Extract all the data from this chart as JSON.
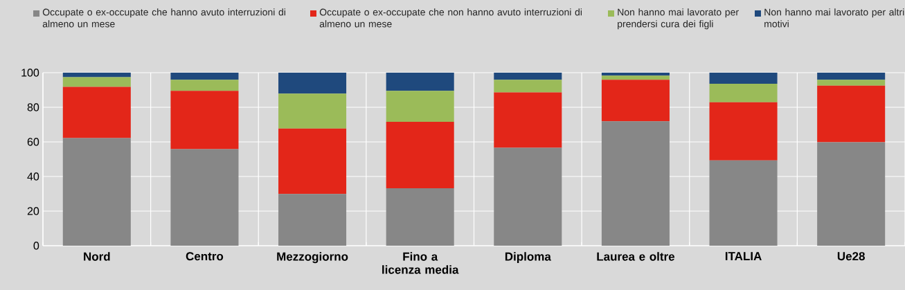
{
  "chart_data": {
    "type": "bar",
    "stacked": true,
    "categories": [
      "Nord",
      "Centro",
      "Mezzogiorno",
      "Fino a licenza media",
      "Diploma",
      "Laurea e oltre",
      "ITALIA",
      "Ue28"
    ],
    "series": [
      {
        "name": "Occupate o ex-occupate che hanno avuto interruzioni di almeno un mese",
        "color": "#878787",
        "values": [
          62.2,
          55.8,
          29.9,
          33.2,
          56.6,
          71.9,
          49.3,
          59.8
        ]
      },
      {
        "name": "Occupate o ex-occupate che non hanno avuto interruzioni di almeno un mese",
        "color": "#e32619",
        "values": [
          29.6,
          33.7,
          37.8,
          38.4,
          32.0,
          24.0,
          33.6,
          32.7
        ]
      },
      {
        "name": "Non hanno mai lavorato per prendersi cura dei figli",
        "color": "#9bbb59",
        "values": [
          5.6,
          6.4,
          20.2,
          17.9,
          7.3,
          2.4,
          10.7,
          3.4
        ]
      },
      {
        "name": "Non hanno mai lavorato per altri motivi",
        "color": "#1f497d",
        "values": [
          2.6,
          4.1,
          12.1,
          10.5,
          4.1,
          1.7,
          6.4,
          4.1
        ]
      }
    ],
    "ylim": [
      0,
      100
    ],
    "yticks": [
      0,
      20,
      40,
      60,
      80,
      100
    ],
    "grid": true,
    "legend": "top"
  }
}
